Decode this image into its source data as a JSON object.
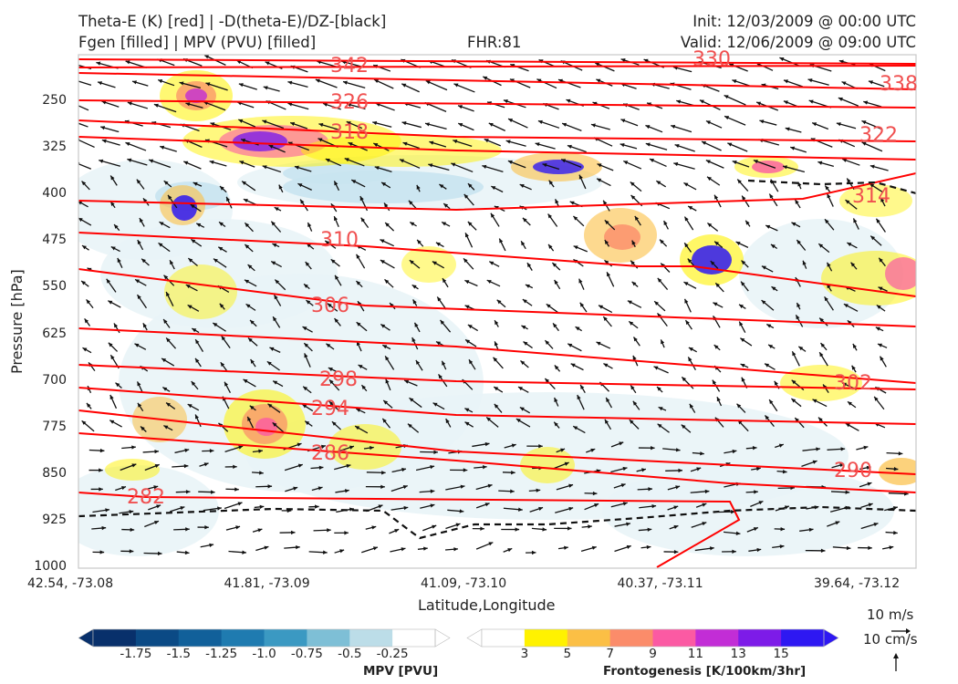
{
  "header": {
    "title_left_1": "Theta-E (K) [red] | -D(theta-E)/DZ-[black]",
    "title_left_2": "Fgen [filled] | MPV (PVU) [filled]",
    "fhr": "FHR:81",
    "init": "Init: 12/03/2009 @ 00:00 UTC",
    "valid": "Valid: 12/06/2009 @ 09:00 UTC"
  },
  "chart_data": {
    "type": "cross-section",
    "xlabel": "Latitude,Longitude",
    "ylabel": "Pressure [hPa]",
    "x_ticks": [
      "42.54, -73.08",
      "41.81, -73.09",
      "41.09, -73.10",
      "40.37, -73.11",
      "39.64, -73.12"
    ],
    "y_ticks": [
      250,
      325,
      400,
      475,
      550,
      625,
      700,
      775,
      850,
      925,
      1000
    ],
    "ylim": [
      1000,
      175
    ],
    "theta_e_contours": [
      {
        "value": 282,
        "label": "282",
        "color": "#ff0000"
      },
      {
        "value": 286,
        "label": "286",
        "color": "#ff0000"
      },
      {
        "value": 290,
        "label": "290",
        "color": "#ff0000"
      },
      {
        "value": 294,
        "label": "294",
        "color": "#ff0000"
      },
      {
        "value": 298,
        "label": "298",
        "color": "#ff0000"
      },
      {
        "value": 302,
        "label": "302",
        "color": "#ff0000"
      },
      {
        "value": 306,
        "label": "306",
        "color": "#ff0000"
      },
      {
        "value": 310,
        "label": "310",
        "color": "#ff0000"
      },
      {
        "value": 314,
        "label": "314",
        "color": "#ff0000"
      },
      {
        "value": 318,
        "label": "318",
        "color": "#ff0000"
      },
      {
        "value": 322,
        "label": "322",
        "color": "#ff0000"
      },
      {
        "value": 326,
        "label": "326",
        "color": "#ff0000"
      },
      {
        "value": 330,
        "label": "330",
        "color": "#ff0000"
      },
      {
        "value": 338,
        "label": "338",
        "color": "#ff0000"
      },
      {
        "value": 342,
        "label": "342",
        "color": "#ff0000"
      }
    ],
    "mpv_colorbar": {
      "label": "MPV [PVU]",
      "ticks": [
        "-1.75",
        "-1.5",
        "-1.25",
        "-1.0",
        "-0.75",
        "-0.5",
        "-0.25"
      ],
      "colors": [
        "#08306b",
        "#0b4a85",
        "#11609a",
        "#1f7bb0",
        "#3b99c2",
        "#7ebfd6",
        "#bcdde8",
        "#ffffff"
      ]
    },
    "fgen_colorbar": {
      "label": "Frontogenesis [K/100km/3hr]",
      "ticks": [
        "3",
        "5",
        "7",
        "9",
        "11",
        "13",
        "15"
      ],
      "colors": [
        "#ffffff",
        "#fff200",
        "#fbbf45",
        "#fb8c6a",
        "#fb5aa3",
        "#c22dd6",
        "#7d1be8",
        "#2e18f2"
      ]
    },
    "wind_reference": {
      "horizontal": "10 m/s",
      "vertical": "10 cm/s"
    }
  }
}
